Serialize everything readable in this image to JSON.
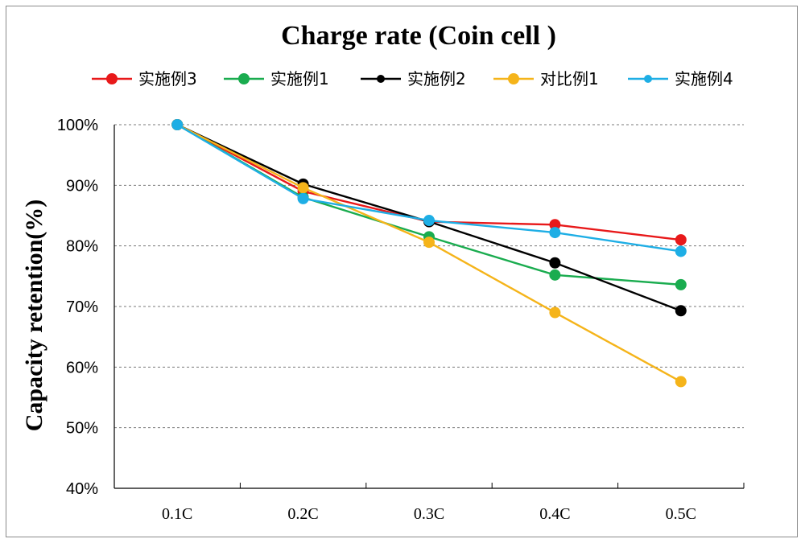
{
  "chart_data": {
    "type": "line",
    "title": "Charge rate (Coin cell )",
    "xlabel": "",
    "ylabel": "Capacity retention(%)",
    "categories": [
      "0.1C",
      "0.2C",
      "0.3C",
      "0.4C",
      "0.5C"
    ],
    "ylim": [
      40,
      100
    ],
    "yticks": [
      100,
      90,
      80,
      70,
      60,
      50,
      40
    ],
    "ytick_labels": [
      "100%",
      "90%",
      "80%",
      "70%",
      "60%",
      "50%",
      "40%"
    ],
    "grid": "horizontal-dashed",
    "legend_position": "top",
    "series": [
      {
        "name": "实施例3",
        "color": "#e8191a",
        "values": [
          100,
          89.0,
          84.0,
          83.5,
          81.0
        ]
      },
      {
        "name": "实施例1",
        "color": "#1aac4f",
        "values": [
          100,
          88.0,
          81.5,
          75.2,
          73.6
        ]
      },
      {
        "name": "实施例2",
        "color": "#000000",
        "values": [
          100,
          90.2,
          84.0,
          77.2,
          69.3
        ]
      },
      {
        "name": "对比例1",
        "color": "#f5b41a",
        "values": [
          100,
          89.6,
          80.6,
          69.0,
          57.6
        ]
      },
      {
        "name": "实施例4",
        "color": "#1eaee5",
        "values": [
          100,
          87.8,
          84.2,
          82.2,
          79.1
        ]
      }
    ]
  }
}
